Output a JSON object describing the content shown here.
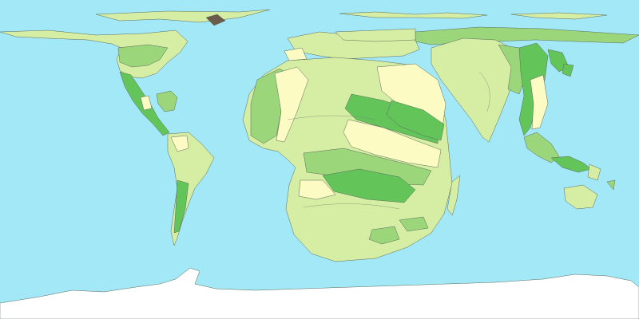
{
  "map": {
    "kind": "cartogram",
    "projection": "equirectangular",
    "colors": {
      "ocean": "#a2e8f6",
      "light_green": "#d6eea4",
      "pale_yellow": "#fdfbc4",
      "medium_green": "#9bd67b",
      "dark_green": "#63c45a",
      "antarctica": "#ffffff",
      "outline": "#5a6b5a"
    },
    "regions": [
      {
        "name": "north-america",
        "fill": "light_green"
      },
      {
        "name": "central-america",
        "fill": "dark_green"
      },
      {
        "name": "caribbean",
        "fill": "medium_green"
      },
      {
        "name": "south-america",
        "fill": "light_green"
      },
      {
        "name": "europe",
        "fill": "light_green"
      },
      {
        "name": "russia",
        "fill": "medium_green"
      },
      {
        "name": "africa",
        "fill": "light_green"
      },
      {
        "name": "middle-east",
        "fill": "pale_yellow"
      },
      {
        "name": "south-asia",
        "fill": "light_green"
      },
      {
        "name": "east-asia",
        "fill": "dark_green"
      },
      {
        "name": "southeast-asia",
        "fill": "medium_green"
      },
      {
        "name": "oceania",
        "fill": "light_green"
      },
      {
        "name": "antarctica",
        "fill": "antarctica"
      }
    ]
  }
}
